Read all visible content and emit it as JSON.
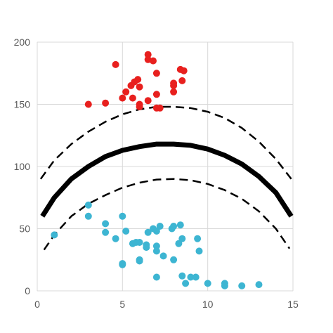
{
  "chart_data": {
    "type": "scatter",
    "title": "",
    "xlabel": "",
    "ylabel": "",
    "xlim": [
      0,
      15
    ],
    "ylim": [
      0,
      200
    ],
    "x_ticks": [
      0,
      5,
      10,
      15
    ],
    "y_ticks": [
      0,
      50,
      100,
      150,
      200
    ],
    "x_tick_labels": [
      "0",
      "5",
      "10",
      "15"
    ],
    "y_tick_labels": [
      "0",
      "50",
      "100",
      "150",
      "200"
    ],
    "grid": true,
    "legend": "none",
    "series": [
      {
        "kind": "scatter",
        "color": "#e8201e",
        "points": [
          [
            3.0,
            150
          ],
          [
            4.0,
            151
          ],
          [
            4.6,
            182
          ],
          [
            5.0,
            155
          ],
          [
            5.2,
            160
          ],
          [
            5.5,
            165
          ],
          [
            5.6,
            155
          ],
          [
            5.7,
            168
          ],
          [
            5.9,
            170
          ],
          [
            6.0,
            164
          ],
          [
            6.0,
            150
          ],
          [
            6.0,
            148
          ],
          [
            6.5,
            190
          ],
          [
            6.5,
            186
          ],
          [
            6.5,
            153
          ],
          [
            6.8,
            185
          ],
          [
            7.0,
            175
          ],
          [
            7.0,
            158
          ],
          [
            7.0,
            147
          ],
          [
            7.2,
            147
          ],
          [
            8.0,
            167
          ],
          [
            8.0,
            165
          ],
          [
            8.0,
            160
          ],
          [
            8.4,
            178
          ],
          [
            8.5,
            169
          ],
          [
            8.6,
            177
          ]
        ]
      },
      {
        "kind": "scatter",
        "color": "#3db5d2",
        "points": [
          [
            1.0,
            45
          ],
          [
            3.0,
            69
          ],
          [
            3.0,
            60
          ],
          [
            4.0,
            54
          ],
          [
            4.0,
            47
          ],
          [
            4.6,
            42
          ],
          [
            5.0,
            60
          ],
          [
            5.0,
            22
          ],
          [
            5.0,
            21
          ],
          [
            5.2,
            48
          ],
          [
            5.6,
            38
          ],
          [
            5.8,
            39
          ],
          [
            6.0,
            39
          ],
          [
            6.0,
            25
          ],
          [
            6.0,
            24
          ],
          [
            6.4,
            37
          ],
          [
            6.4,
            35
          ],
          [
            6.5,
            47
          ],
          [
            6.8,
            50
          ],
          [
            7.0,
            48
          ],
          [
            7.0,
            36
          ],
          [
            7.0,
            32
          ],
          [
            7.0,
            11
          ],
          [
            7.2,
            52
          ],
          [
            7.4,
            28
          ],
          [
            7.9,
            50
          ],
          [
            8.0,
            52
          ],
          [
            8.0,
            25
          ],
          [
            8.3,
            38
          ],
          [
            8.4,
            53
          ],
          [
            8.5,
            42
          ],
          [
            8.5,
            12
          ],
          [
            8.7,
            6
          ],
          [
            9.0,
            11
          ],
          [
            9.3,
            11
          ],
          [
            9.4,
            42
          ],
          [
            9.5,
            32
          ],
          [
            10.0,
            6
          ],
          [
            11.0,
            6
          ],
          [
            11.0,
            4
          ],
          [
            12.0,
            4
          ],
          [
            13.0,
            5
          ]
        ]
      },
      {
        "kind": "curve",
        "color": "#000000",
        "style": "solid",
        "points": [
          [
            0.3,
            60
          ],
          [
            1,
            75
          ],
          [
            2,
            90
          ],
          [
            3,
            100
          ],
          [
            4,
            108
          ],
          [
            5,
            113
          ],
          [
            6,
            116
          ],
          [
            7,
            118
          ],
          [
            8,
            118
          ],
          [
            9,
            117
          ],
          [
            10,
            114
          ],
          [
            11,
            109
          ],
          [
            12,
            102
          ],
          [
            13,
            92
          ],
          [
            14,
            79
          ],
          [
            14.9,
            60
          ]
        ]
      },
      {
        "kind": "curve",
        "color": "#000000",
        "style": "dashed",
        "points": [
          [
            0.2,
            90
          ],
          [
            1,
            105
          ],
          [
            2,
            118
          ],
          [
            3,
            128
          ],
          [
            4,
            136
          ],
          [
            5,
            142
          ],
          [
            6,
            146
          ],
          [
            7,
            148
          ],
          [
            8,
            148
          ],
          [
            9,
            147
          ],
          [
            10,
            144
          ],
          [
            11,
            139
          ],
          [
            12,
            131
          ],
          [
            13,
            120
          ],
          [
            14,
            106
          ],
          [
            14.9,
            90
          ]
        ]
      },
      {
        "kind": "curve",
        "color": "#000000",
        "style": "dashed",
        "points": [
          [
            0.4,
            33
          ],
          [
            1,
            45
          ],
          [
            2,
            60
          ],
          [
            3,
            70
          ],
          [
            4,
            77
          ],
          [
            5,
            83
          ],
          [
            6,
            87
          ],
          [
            7,
            89.5
          ],
          [
            8,
            90
          ],
          [
            9,
            89
          ],
          [
            10,
            86
          ],
          [
            11,
            81
          ],
          [
            12,
            74
          ],
          [
            13,
            64
          ],
          [
            14,
            50
          ],
          [
            14.8,
            34
          ]
        ]
      }
    ]
  }
}
